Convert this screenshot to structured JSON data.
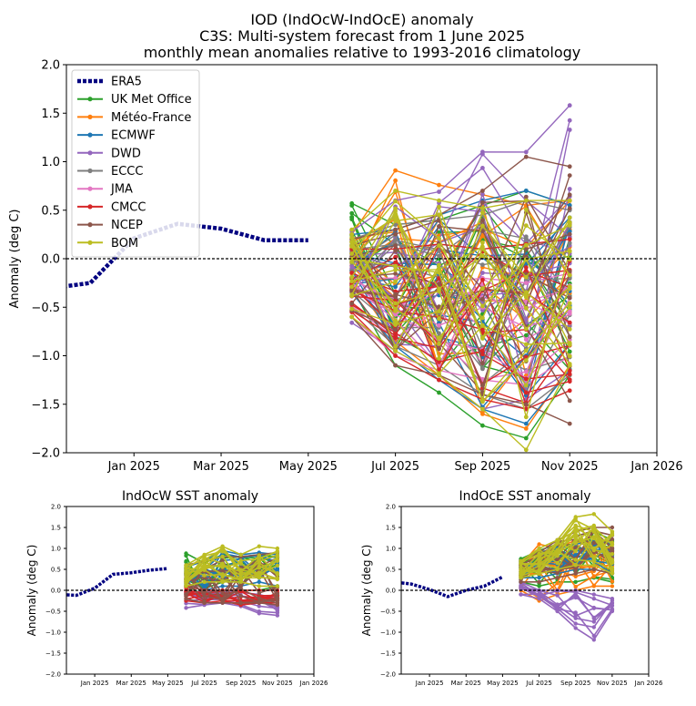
{
  "figure": {
    "title_lines": [
      "IOD (IndOcW-IndOcE) anomaly",
      "C3S: Multi-system forecast from 1 June 2025",
      "monthly mean anomalies relative to 1993-2016 climatology"
    ]
  },
  "colors": {
    "ERA5": "#000080",
    "UK Met Office": "#2ca02c",
    "Météo-France": "#ff7f0e",
    "ECMWF": "#1f77b4",
    "DWD": "#9467bd",
    "ECCC": "#7f7f7f",
    "JMA": "#e377c2",
    "CMCC": "#d62728",
    "NCEP": "#8c564b",
    "BOM": "#bcbd22"
  },
  "chart_data": [
    {
      "id": "main",
      "type": "line",
      "title": "",
      "xlabel": "",
      "ylabel": "Anomaly (deg C)",
      "ylim": [
        -2.0,
        2.0
      ],
      "y_ticks": [
        "−2.0",
        "−1.5",
        "−1.0",
        "−0.5",
        "0.0",
        "0.5",
        "1.0",
        "1.5",
        "2.0"
      ],
      "x_ticks": [
        "Jan 2025",
        "Mar 2025",
        "May 2025",
        "Jul 2025",
        "Sep 2025",
        "Nov 2025",
        "Jan 2026"
      ],
      "x_months": [
        "2024-11",
        "2024-12",
        "2025-01",
        "2025-02",
        "2025-03",
        "2025-04",
        "2025-05",
        "2025-06",
        "2025-07",
        "2025-08",
        "2025-09",
        "2025-10",
        "2025-11",
        "2025-12",
        "2026-01"
      ],
      "zero_line": true,
      "legend": {
        "position": "top-left",
        "entries": [
          "ERA5",
          "UK Met Office",
          "Météo-France",
          "ECMWF",
          "DWD",
          "ECCC",
          "JMA",
          "CMCC",
          "NCEP",
          "BOM"
        ]
      },
      "era5": {
        "x": [
          "2024-11",
          "2024-12",
          "2025-01",
          "2025-02",
          "2025-03",
          "2025-04",
          "2025-05"
        ],
        "y": [
          -0.31,
          -0.25,
          0.21,
          0.36,
          0.31,
          0.19,
          0.19
        ]
      },
      "forecast_months": [
        "2025-06",
        "2025-07",
        "2025-08",
        "2025-09",
        "2025-10",
        "2025-11"
      ],
      "forecast_envelopes": [
        {
          "name": "UK Met Office",
          "low": [
            -0.3,
            -1.1,
            -1.38,
            -1.72,
            -1.85,
            -1.2
          ],
          "high": [
            0.57,
            0.35,
            0.4,
            0.55,
            0.7,
            0.55
          ],
          "members": 12
        },
        {
          "name": "Météo-France",
          "low": [
            -0.2,
            -0.85,
            -1.2,
            -1.6,
            -1.75,
            -1.1
          ],
          "high": [
            0.25,
            0.91,
            0.76,
            0.66,
            0.55,
            0.6
          ],
          "members": 12
        },
        {
          "name": "ECMWF",
          "low": [
            -0.35,
            -0.9,
            -1.25,
            -1.55,
            -1.7,
            -1.15
          ],
          "high": [
            0.25,
            0.3,
            0.45,
            0.6,
            0.7,
            0.55
          ],
          "members": 12
        },
        {
          "name": "DWD",
          "low": [
            -0.66,
            -0.95,
            -1.2,
            -1.55,
            -1.45,
            -1.15
          ],
          "high": [
            0.28,
            0.6,
            0.69,
            1.1,
            1.1,
            1.58
          ],
          "members": 12
        },
        {
          "name": "ECCC",
          "low": [
            -0.5,
            -0.9,
            -1.1,
            -1.4,
            -1.55,
            -1.2
          ],
          "high": [
            0.2,
            0.35,
            0.4,
            0.45,
            0.6,
            0.5
          ],
          "members": 10
        },
        {
          "name": "JMA",
          "low": [
            -0.6,
            -1.0,
            -1.15,
            -1.25,
            -1.3,
            -1.0
          ],
          "high": [
            -0.2,
            -0.2,
            -0.25,
            -0.2,
            -0.25,
            -0.15
          ],
          "members": 10
        },
        {
          "name": "CMCC",
          "low": [
            -0.55,
            -1.0,
            -1.25,
            -1.45,
            -1.55,
            -1.36
          ],
          "high": [
            0.1,
            0.1,
            0.15,
            0.1,
            0.15,
            0.2
          ],
          "members": 12
        },
        {
          "name": "NCEP",
          "low": [
            -0.6,
            -1.1,
            -1.2,
            -1.4,
            -1.5,
            -1.7
          ],
          "high": [
            0.2,
            0.3,
            0.45,
            0.7,
            1.05,
            0.95
          ],
          "members": 12
        },
        {
          "name": "BOM",
          "low": [
            -0.6,
            -0.95,
            -1.2,
            -1.55,
            -1.97,
            -1.1
          ],
          "high": [
            0.3,
            0.7,
            0.6,
            0.52,
            0.6,
            0.6
          ],
          "members": 18
        }
      ]
    },
    {
      "id": "indocw",
      "type": "line",
      "title": "IndOcW SST anomaly",
      "xlabel": "",
      "ylabel": "Anomaly (deg C)",
      "ylim": [
        -2.0,
        2.0
      ],
      "y_ticks": [
        "−2.0",
        "−1.5",
        "−1.0",
        "−0.5",
        "0.0",
        "0.5",
        "1.0",
        "1.5",
        "2.0"
      ],
      "x_ticks": [
        "Jan 2025",
        "Mar 2025",
        "May 2025",
        "Jul 2025",
        "Sep 2025",
        "Nov 2025",
        "Jan 2026"
      ],
      "zero_line": true,
      "era5": {
        "x": [
          "2024-11",
          "2024-12",
          "2025-01",
          "2025-02",
          "2025-03",
          "2025-04",
          "2025-05"
        ],
        "y": [
          -0.1,
          -0.12,
          0.05,
          0.38,
          0.42,
          0.48,
          0.52
        ]
      },
      "forecast_months": [
        "2025-06",
        "2025-07",
        "2025-08",
        "2025-09",
        "2025-10",
        "2025-11"
      ],
      "forecast_envelopes": [
        {
          "name": "UK Met Office",
          "low": [
            0.1,
            -0.1,
            0.0,
            0.0,
            0.0,
            0.1
          ],
          "high": [
            0.88,
            0.65,
            0.85,
            0.8,
            0.85,
            0.8
          ],
          "members": 10
        },
        {
          "name": "ECMWF",
          "low": [
            0.1,
            0.0,
            0.1,
            0.1,
            0.2,
            0.1
          ],
          "high": [
            0.55,
            0.7,
            0.95,
            0.85,
            0.9,
            0.85
          ],
          "members": 10
        },
        {
          "name": "DWD",
          "low": [
            -0.42,
            -0.35,
            -0.3,
            -0.38,
            -0.55,
            -0.6
          ],
          "high": [
            0.0,
            -0.05,
            0.0,
            -0.05,
            -0.1,
            -0.2
          ],
          "members": 10
        },
        {
          "name": "CMCC",
          "low": [
            -0.25,
            -0.3,
            -0.25,
            -0.35,
            -0.3,
            -0.3
          ],
          "high": [
            0.1,
            0.0,
            0.0,
            0.0,
            0.0,
            0.0
          ],
          "members": 10
        },
        {
          "name": "NCEP",
          "low": [
            -0.2,
            -0.3,
            -0.3,
            -0.3,
            -0.3,
            -0.35
          ],
          "high": [
            0.6,
            0.7,
            0.8,
            0.8,
            0.85,
            0.9
          ],
          "members": 12
        },
        {
          "name": "BOM",
          "low": [
            0.1,
            0.2,
            0.2,
            0.2,
            0.1,
            0.1
          ],
          "high": [
            0.6,
            0.85,
            1.05,
            0.85,
            1.05,
            1.0
          ],
          "members": 16
        }
      ]
    },
    {
      "id": "indoce",
      "type": "line",
      "title": "IndOcE SST anomaly",
      "xlabel": "",
      "ylabel": "Anomaly (deg C)",
      "ylim": [
        -2.0,
        2.0
      ],
      "y_ticks": [
        "−2.0",
        "−1.5",
        "−1.0",
        "−0.5",
        "0.0",
        "0.5",
        "1.0",
        "1.5",
        "2.0"
      ],
      "x_ticks": [
        "Jan 2025",
        "Mar 2025",
        "May 2025",
        "Jul 2025",
        "Sep 2025",
        "Nov 2025",
        "Jan 2026"
      ],
      "zero_line": true,
      "era5": {
        "x": [
          "2024-11",
          "2024-12",
          "2025-01",
          "2025-02",
          "2025-03",
          "2025-04",
          "2025-05"
        ],
        "y": [
          0.2,
          0.15,
          0.02,
          -0.15,
          0.0,
          0.1,
          0.32
        ]
      },
      "forecast_months": [
        "2025-06",
        "2025-07",
        "2025-08",
        "2025-09",
        "2025-10",
        "2025-11"
      ],
      "forecast_envelopes": [
        {
          "name": "UK Met Office",
          "low": [
            0.2,
            0.1,
            0.2,
            0.2,
            0.3,
            0.2
          ],
          "high": [
            0.75,
            0.95,
            1.1,
            1.3,
            1.4,
            1.2
          ],
          "members": 10
        },
        {
          "name": "Météo-France",
          "low": [
            0.0,
            -0.25,
            -0.1,
            0.0,
            0.1,
            0.1
          ],
          "high": [
            0.6,
            1.1,
            1.0,
            1.2,
            1.1,
            1.0
          ],
          "members": 10
        },
        {
          "name": "ECMWF",
          "low": [
            0.3,
            0.3,
            0.4,
            0.5,
            0.5,
            0.4
          ],
          "high": [
            0.7,
            0.9,
            1.0,
            1.1,
            1.2,
            1.1
          ],
          "members": 10
        },
        {
          "name": "DWD",
          "low": [
            -0.1,
            -0.2,
            -0.5,
            -0.9,
            -1.18,
            -0.5
          ],
          "high": [
            0.2,
            0.0,
            0.0,
            0.0,
            -0.1,
            -0.2
          ],
          "members": 10
        },
        {
          "name": "NCEP",
          "low": [
            0.2,
            0.2,
            0.3,
            0.4,
            0.5,
            0.4
          ],
          "high": [
            0.7,
            0.9,
            1.2,
            1.4,
            1.5,
            1.5
          ],
          "members": 12
        },
        {
          "name": "BOM",
          "low": [
            0.3,
            0.4,
            0.5,
            0.6,
            0.6,
            0.4
          ],
          "high": [
            0.7,
            1.0,
            1.2,
            1.75,
            1.82,
            1.4
          ],
          "members": 16
        }
      ]
    }
  ]
}
